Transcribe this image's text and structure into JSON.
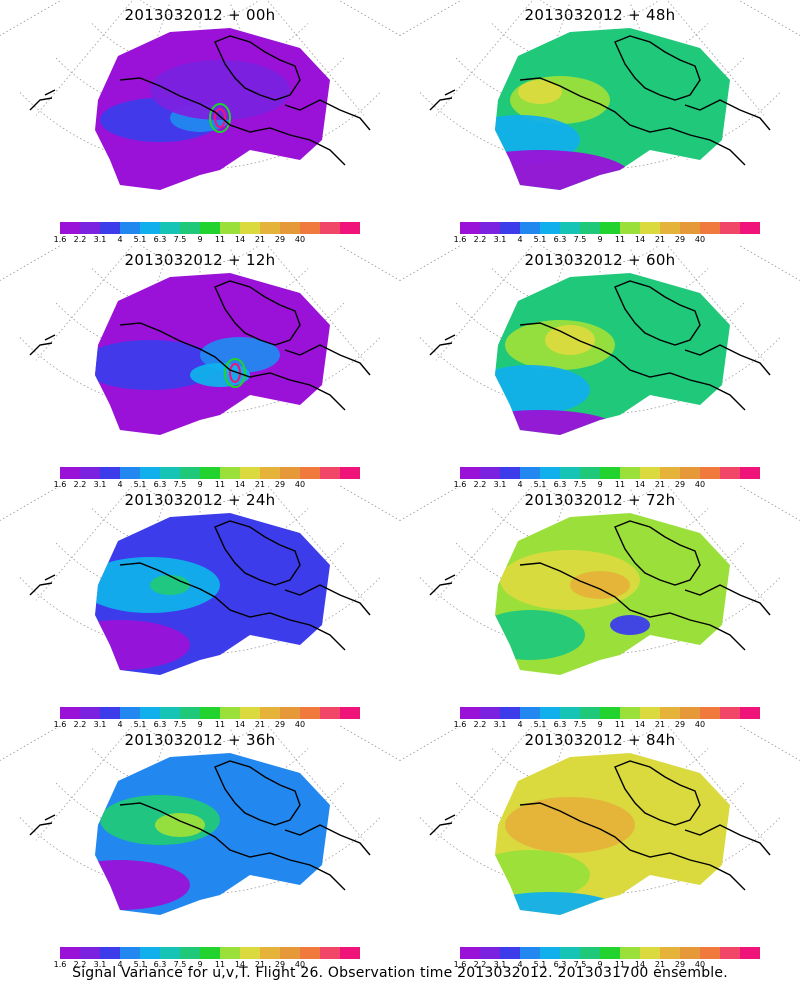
{
  "colorbar": {
    "colors": [
      "#9a12d8",
      "#7a22e0",
      "#3c3ceb",
      "#2288f0",
      "#11b0ec",
      "#16c4b6",
      "#20c87a",
      "#22d22e",
      "#9be03a",
      "#dada3e",
      "#e6b33a",
      "#e69938",
      "#f07a3e",
      "#f24668",
      "#f0147a"
    ],
    "labels": [
      "1.6",
      "2.2",
      "3.1",
      "4",
      "5.1",
      "6.3",
      "7.5",
      "9",
      "11",
      "14",
      "21",
      "29",
      "40"
    ]
  },
  "panels": [
    {
      "title": "2013032012 + 00h"
    },
    {
      "title": "2013032012 + 48h"
    },
    {
      "title": "2013032012 + 12h"
    },
    {
      "title": "2013032012 + 60h"
    },
    {
      "title": "2013032012 + 24h"
    },
    {
      "title": "2013032012 + 72h"
    },
    {
      "title": "2013032012 + 36h"
    },
    {
      "title": "2013032012 + 84h"
    }
  ],
  "footer": "Signal Variance for u,v,T. Flight 26. Observation time 2013032012. 2013031700 ensemble."
}
